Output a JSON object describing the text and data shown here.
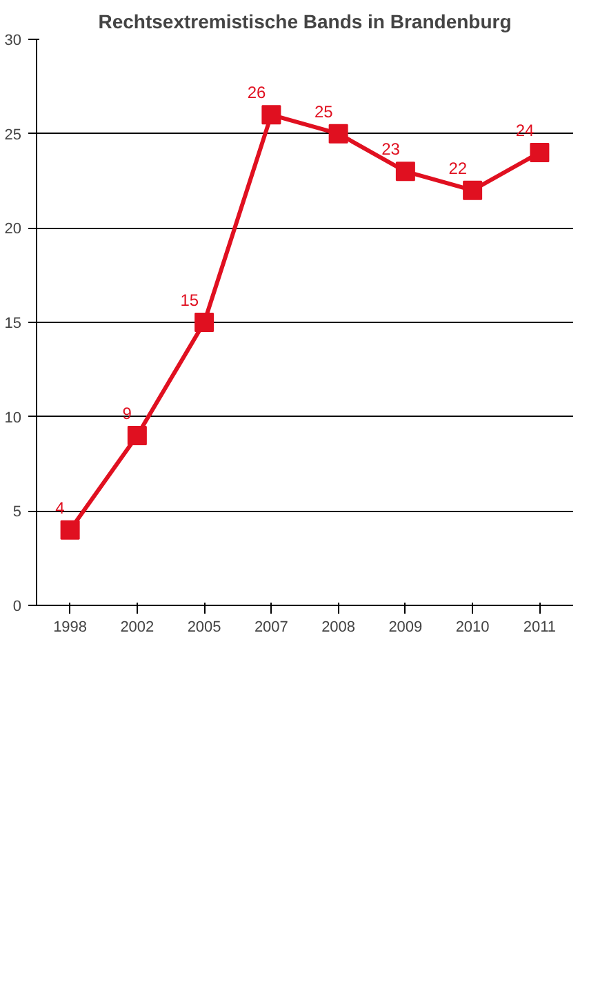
{
  "chart_data": {
    "type": "line",
    "title": "Rechtsextremistische Bands in Brandenburg",
    "categories": [
      "1998",
      "2002",
      "2005",
      "2007",
      "2008",
      "2009",
      "2010",
      "2011"
    ],
    "series": [
      {
        "color": "#e01020",
        "values": [
          4,
          9,
          15,
          26,
          25,
          23,
          22,
          24
        ]
      }
    ],
    "ylim": [
      0,
      30
    ],
    "yticks": [
      0,
      5,
      10,
      15,
      20,
      25,
      30
    ],
    "grid": "y",
    "marker": "square",
    "line_style": "solid",
    "data_labels": true
  }
}
